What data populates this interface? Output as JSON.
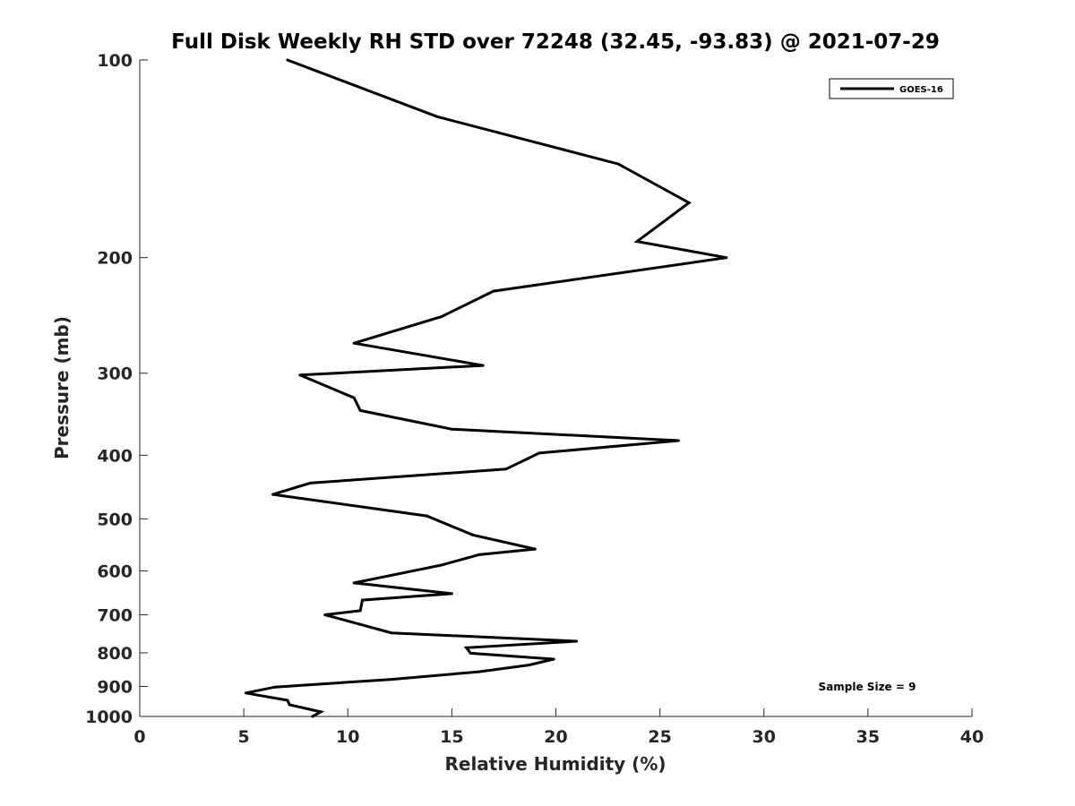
{
  "chart_data": {
    "type": "line",
    "title": "Full Disk Weekly RH STD over 72248 (32.45, -93.83) @ 2021-07-29",
    "xlabel": "Relative Humidity (%)",
    "ylabel": "Pressure (mb)",
    "xlim": [
      0,
      40
    ],
    "ylim": [
      1000,
      100
    ],
    "yscale": "log",
    "y_inverted": true,
    "x_ticks": [
      0,
      5,
      10,
      15,
      20,
      25,
      30,
      35,
      40
    ],
    "x_tick_labels": [
      "0",
      "5",
      "10",
      "15",
      "20",
      "25",
      "30",
      "35",
      "40"
    ],
    "y_ticks": [
      100,
      200,
      300,
      400,
      500,
      600,
      700,
      800,
      900,
      1000
    ],
    "y_tick_labels": [
      "100",
      "200",
      "300",
      "400",
      "500",
      "600",
      "700",
      "800",
      "900",
      "1000"
    ],
    "grid": false,
    "legend_position": "top-right",
    "annotation": "Sample Size = 9",
    "series": [
      {
        "name": "GOES-16",
        "color": "#000000",
        "x": [
          7.1,
          14.3,
          23.0,
          26.4,
          23.9,
          28.2,
          17.0,
          14.5,
          10.3,
          16.5,
          7.7,
          10.3,
          10.6,
          15.0,
          25.9,
          19.2,
          17.6,
          8.2,
          6.4,
          13.8,
          16.0,
          19.0,
          16.3,
          14.5,
          10.3,
          15.0,
          10.7,
          10.6,
          8.9,
          12.1,
          21.0,
          15.7,
          15.9,
          19.9,
          18.7,
          16.3,
          12.1,
          6.5,
          5.1,
          7.1,
          7.2,
          8.7,
          8.3
        ],
        "y": [
          100,
          122,
          144,
          165,
          189,
          200,
          225,
          246,
          270,
          292,
          302,
          327,
          342,
          365,
          380,
          397,
          420,
          441,
          459,
          495,
          529,
          556,
          567,
          588,
          626,
          650,
          665,
          690,
          700,
          746,
          768,
          786,
          801,
          818,
          835,
          855,
          878,
          902,
          921,
          945,
          960,
          984,
          1000
        ]
      }
    ]
  }
}
